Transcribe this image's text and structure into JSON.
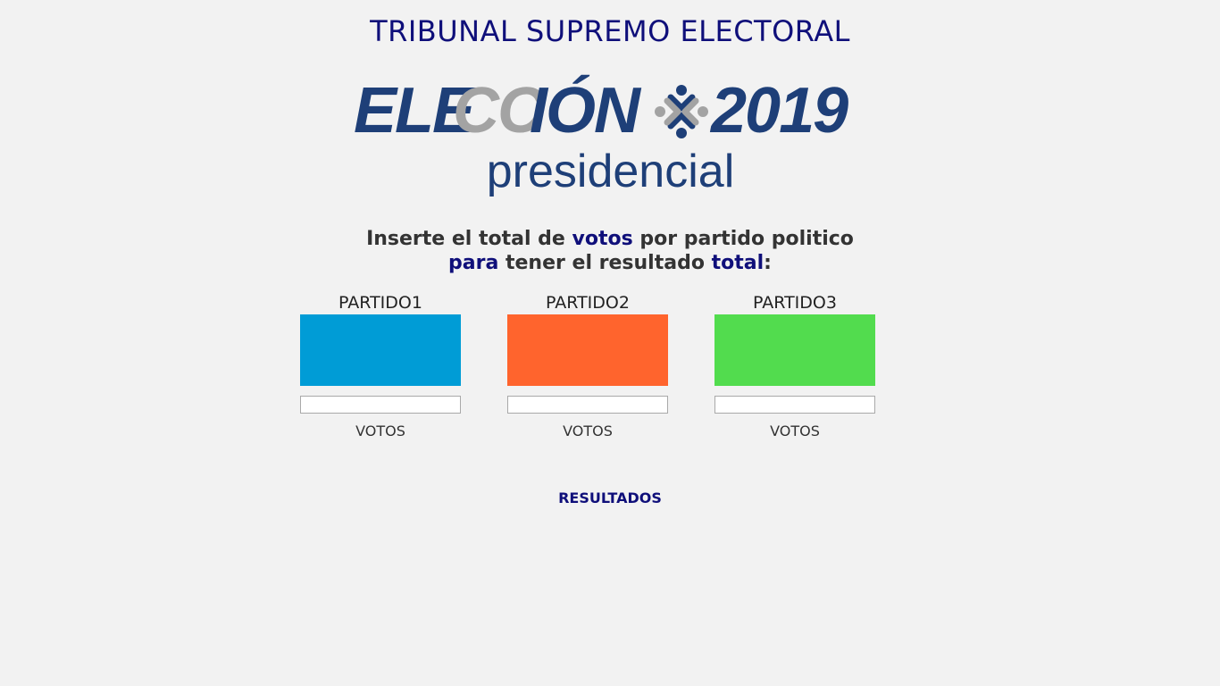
{
  "header": {
    "title": "TRIBUNAL SUPREMO ELECTORAL"
  },
  "logo": {
    "word_part1": "ELE",
    "word_part2": "CC",
    "word_part3": "IÓN",
    "year": "2019",
    "subtitle": "presidencial",
    "colors": {
      "primary": "#1e3f78",
      "secondary": "#a3a3a3"
    }
  },
  "instructions": {
    "line1_a": "Inserte el total de ",
    "line1_b": "votos",
    "line1_c": " por partido politico",
    "line2_a": "para",
    "line2_b": " tener el resultado ",
    "line2_c": "total",
    "line2_d": ":"
  },
  "parties": [
    {
      "name": "PARTIDO1",
      "color": "#009cd6",
      "value": "",
      "votes_label": "VOTOS"
    },
    {
      "name": "PARTIDO2",
      "color": "#ff642d",
      "value": "",
      "votes_label": "VOTOS"
    },
    {
      "name": "PARTIDO3",
      "color": "#52dc4e",
      "value": "",
      "votes_label": "VOTOS"
    }
  ],
  "results": {
    "label": "RESULTADOS"
  }
}
